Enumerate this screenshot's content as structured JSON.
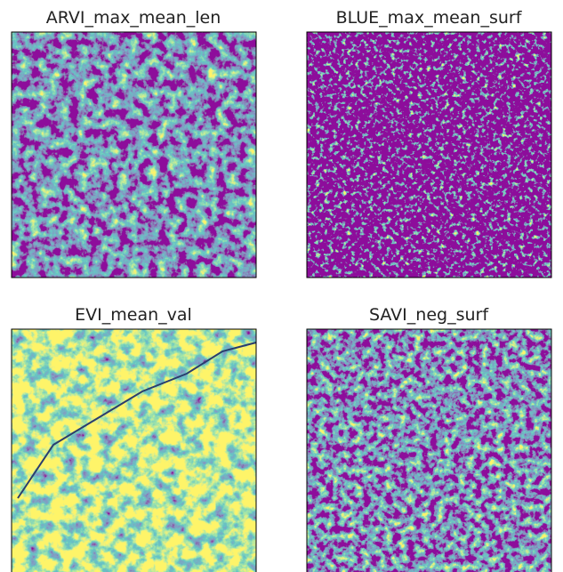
{
  "panels": [
    {
      "title": "ARVI_max_mean_len"
    },
    {
      "title": "BLUE_max_mean_surf"
    },
    {
      "title": "EVI_mean_val"
    },
    {
      "title": "SAVI_neg_surf"
    }
  ]
}
